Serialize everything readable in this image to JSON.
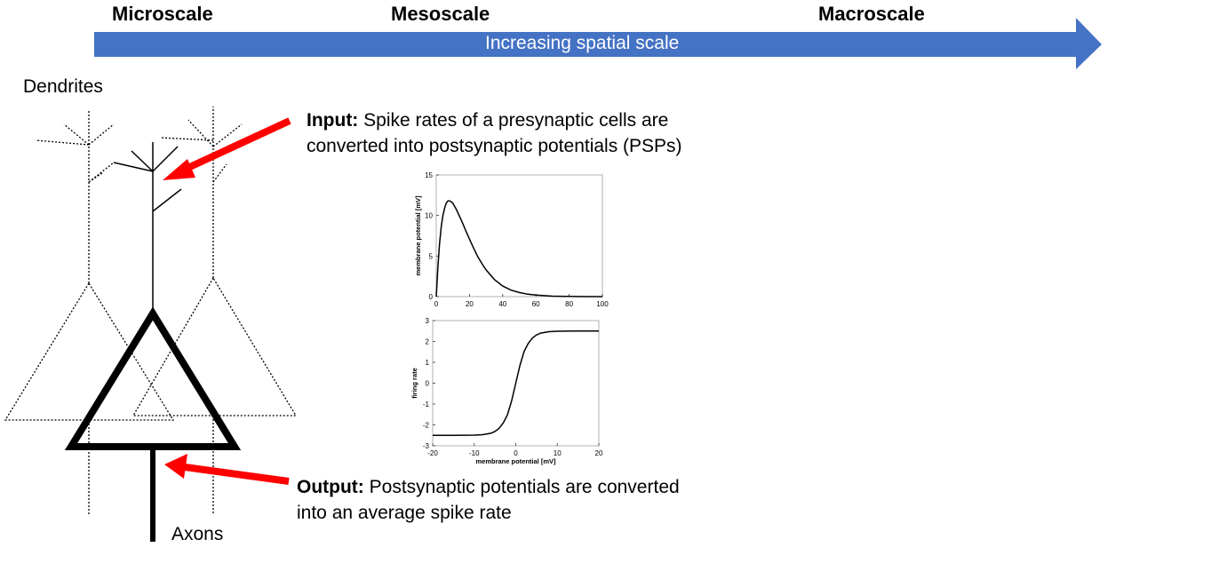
{
  "scale": {
    "micro": "Microscale",
    "meso": "Mesoscale",
    "macro": "Macroscale",
    "arrow_label": "Increasing spatial scale",
    "arrow_color": "#4472C4"
  },
  "labels": {
    "dendrites": "Dendrites",
    "axons": "Axons"
  },
  "input": {
    "title": "Input:",
    "line1": "Spike rates of a presynaptic cells are",
    "line2": "converted into postsynaptic potentials (PSPs)"
  },
  "output": {
    "title": "Output:",
    "line1": "Postsynaptic potentials are converted",
    "line2": "into an average spike rate"
  },
  "pointer_color": "#FF0000",
  "chart_data": [
    {
      "type": "line",
      "title": "",
      "xlabel": "",
      "ylabel": "membrane potential [mV]",
      "xlim": [
        0,
        100
      ],
      "ylim": [
        0,
        15
      ],
      "xticks": [
        0,
        20,
        40,
        60,
        80,
        100
      ],
      "yticks": [
        0,
        5,
        10,
        15
      ],
      "series": [
        {
          "x": [
            0,
            1,
            2,
            3,
            4,
            5,
            6,
            7,
            8,
            9,
            10,
            12,
            14,
            16,
            18,
            20,
            22,
            25,
            28,
            30,
            35,
            40,
            45,
            50,
            55,
            60,
            70,
            80,
            90,
            100
          ],
          "values": [
            0,
            3.7,
            6.5,
            8.6,
            10.0,
            10.9,
            11.5,
            11.8,
            11.8,
            11.7,
            11.5,
            10.8,
            9.9,
            9.0,
            8.0,
            7.1,
            6.2,
            4.9,
            3.9,
            3.3,
            2.1,
            1.3,
            0.8,
            0.5,
            0.3,
            0.2,
            0.05,
            0.02,
            0,
            0
          ]
        }
      ]
    },
    {
      "type": "line",
      "title": "",
      "xlabel": "membrane potential [mV]",
      "ylabel": "firing rate",
      "xlim": [
        -20,
        20
      ],
      "ylim": [
        -3,
        3
      ],
      "xticks": [
        -20,
        -10,
        0,
        10,
        20
      ],
      "yticks": [
        -3,
        -2,
        -1,
        0,
        1,
        2,
        3
      ],
      "series": [
        {
          "x": [
            -20,
            -15,
            -10,
            -8,
            -6,
            -5,
            -4,
            -3,
            -2,
            -1,
            0,
            1,
            2,
            3,
            4,
            5,
            6,
            8,
            10,
            15,
            20
          ],
          "values": [
            -2.5,
            -2.5,
            -2.49,
            -2.47,
            -2.4,
            -2.31,
            -2.16,
            -1.9,
            -1.52,
            -0.85,
            0,
            0.85,
            1.52,
            1.9,
            2.16,
            2.31,
            2.4,
            2.47,
            2.49,
            2.5,
            2.5
          ]
        }
      ]
    }
  ]
}
